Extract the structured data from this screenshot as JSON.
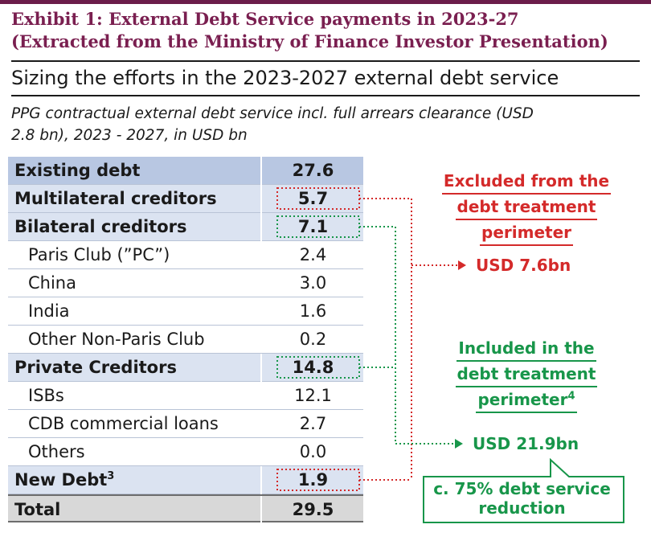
{
  "exhibit": {
    "title_line1": "Exhibit 1: External Debt Service payments in 2023-27",
    "title_line2": "(Extracted from the Ministry of Finance Investor Presentation)"
  },
  "subtitle": "Sizing the efforts in the 2023-2027 external debt service",
  "caption_line1": "PPG contractual external debt service incl. full arrears clearance (USD",
  "caption_line2": "2.8 bn), 2023 - 2027, in USD bn",
  "colors": {
    "title": "#7a1f50",
    "header_row": "#b8c7e2",
    "subtotal_row": "#dbe3f1",
    "excluded": "#d42a2a",
    "included": "#18964a"
  },
  "chart_data": {
    "type": "table",
    "columns": [
      "Creditor",
      "USD bn"
    ],
    "rows": [
      {
        "label": "Existing debt",
        "value": "27.6",
        "level": 0,
        "style": "header"
      },
      {
        "label": "Multilateral creditors",
        "value": "5.7",
        "level": 0,
        "style": "subtotal",
        "group": "excluded"
      },
      {
        "label": "Bilateral creditors",
        "value": "7.1",
        "level": 0,
        "style": "subtotal",
        "group": "included"
      },
      {
        "label": "Paris Club (”PC”)",
        "value": "2.4",
        "level": 1,
        "style": "item"
      },
      {
        "label": "China",
        "value": "3.0",
        "level": 1,
        "style": "item"
      },
      {
        "label": "India",
        "value": "1.6",
        "level": 1,
        "style": "item"
      },
      {
        "label": "Other Non-Paris Club",
        "value": "0.2",
        "level": 1,
        "style": "item"
      },
      {
        "label": "Private Creditors",
        "value": "14.8",
        "level": 0,
        "style": "subtotal",
        "group": "included"
      },
      {
        "label": "ISBs",
        "value": "12.1",
        "level": 1,
        "style": "item"
      },
      {
        "label": "CDB commercial loans",
        "value": "2.7",
        "level": 1,
        "style": "item"
      },
      {
        "label": "Others",
        "value": "0.0",
        "level": 1,
        "style": "item"
      },
      {
        "label": "New Debt",
        "label_sup": "3",
        "value": "1.9",
        "level": 0,
        "style": "subtotal",
        "group": "excluded"
      },
      {
        "label": "Total",
        "value": "29.5",
        "level": 0,
        "style": "total"
      }
    ],
    "annotations": {
      "excluded": {
        "lines": [
          "Excluded from the",
          "debt treatment",
          "perimeter"
        ],
        "amount": "USD 7.6bn"
      },
      "included": {
        "lines": [
          "Included in the",
          "debt treatment",
          "perimeter"
        ],
        "sup": "4",
        "amount": "USD 21.9bn"
      },
      "callout": [
        "c. 75% debt service",
        "reduction"
      ]
    }
  }
}
